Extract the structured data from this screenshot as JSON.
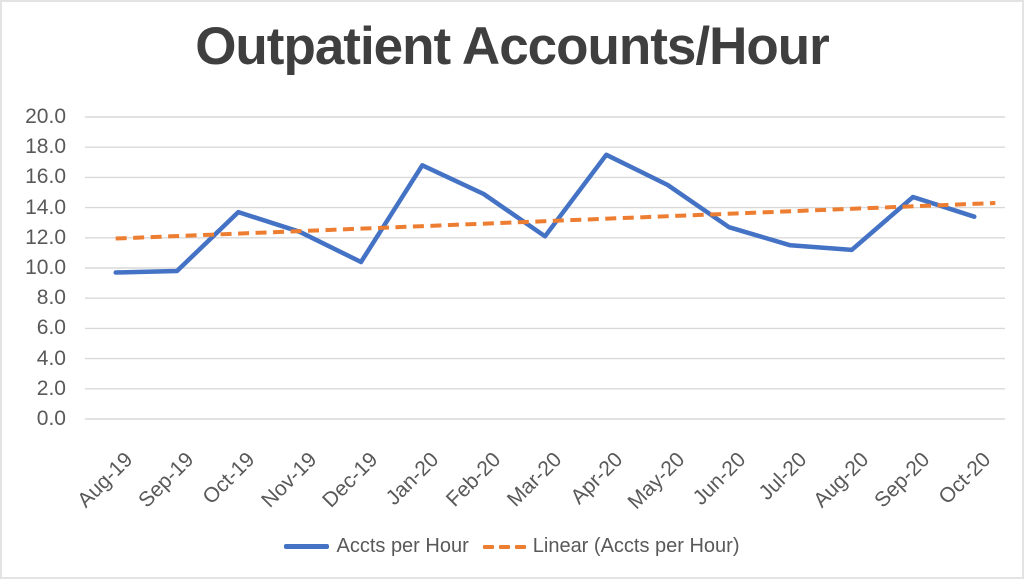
{
  "page": {
    "background": "#ffffff",
    "border_color": "#e3e3e3"
  },
  "chart_data": {
    "type": "line",
    "title": "Outpatient Accounts/Hour",
    "title_color": "#3f3f3f",
    "text_color": "#595959",
    "categories": [
      "Aug-19",
      "Sep-19",
      "Oct-19",
      "Nov-19",
      "Dec-19",
      "Jan-20",
      "Feb-20",
      "Mar-20",
      "Apr-20",
      "May-20",
      "Jun-20",
      "Jul-20",
      "Aug-20",
      "Sep-20",
      "Oct-20"
    ],
    "series": [
      {
        "name": "Accts per Hour",
        "style": "solid",
        "color": "#4472C4",
        "values": [
          9.7,
          9.8,
          13.7,
          12.4,
          10.4,
          16.8,
          14.9,
          12.1,
          17.5,
          15.5,
          12.7,
          11.5,
          11.2,
          14.7,
          13.4
        ]
      },
      {
        "name": "Linear (Accts per Hour)",
        "style": "dashed",
        "color": "#ED7D31",
        "trend_start_value": 11.95,
        "trend_end_value": 14.25
      }
    ],
    "y_axis": {
      "min": 0,
      "max": 20,
      "step": 2,
      "tick_labels": [
        "20.0",
        "18.0",
        "16.0",
        "14.0",
        "12.0",
        "10.0",
        "8.0",
        "6.0",
        "4.0",
        "2.0",
        "0.0"
      ]
    },
    "x_axis": {
      "label_rotation_deg": 45
    },
    "grid": {
      "horizontal": true,
      "vertical": false,
      "color": "#D9D9D9"
    },
    "legend_position": "bottom"
  }
}
